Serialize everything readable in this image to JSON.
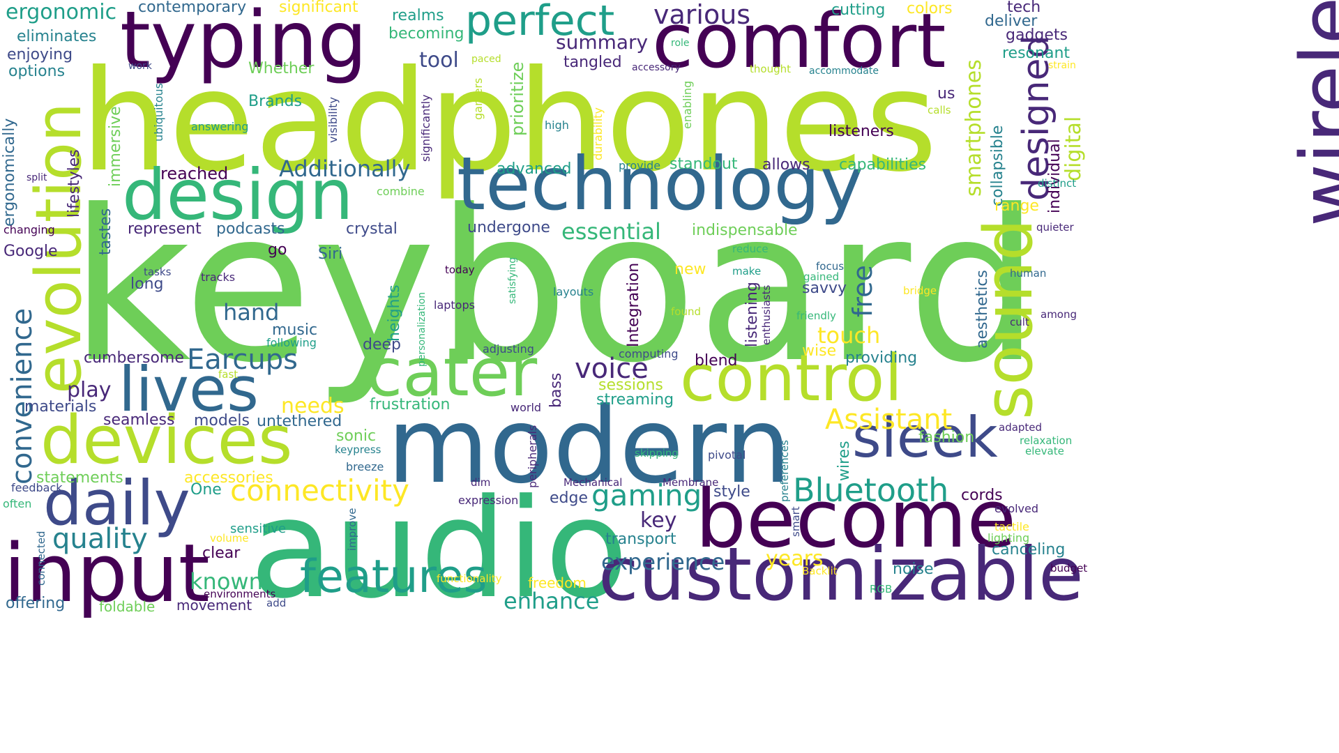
{
  "palette": {
    "purple": "#440154",
    "indigo": "#482878",
    "blue": "#3e4a89",
    "steel": "#31688e",
    "teal": "#26828e",
    "cyan": "#1f9e89",
    "green": "#35b779",
    "lime": "#6ece58",
    "yellowgreen": "#b5de2b",
    "yellow": "#fde725"
  },
  "words": [
    {
      "text": "keyboard",
      "color": "lime"
    },
    {
      "text": "headphones",
      "color": "yellowgreen"
    },
    {
      "text": "audio",
      "color": "green"
    },
    {
      "text": "modern",
      "color": "steel"
    },
    {
      "text": "wireless",
      "color": "indigo"
    },
    {
      "text": "typing",
      "color": "purple"
    },
    {
      "text": "comfort",
      "color": "purple"
    },
    {
      "text": "technology",
      "color": "steel"
    },
    {
      "text": "design",
      "color": "green"
    },
    {
      "text": "evolution",
      "color": "yellowgreen"
    },
    {
      "text": "control",
      "color": "yellowgreen"
    },
    {
      "text": "become",
      "color": "purple"
    },
    {
      "text": "customizable",
      "color": "indigo"
    },
    {
      "text": "input",
      "color": "purple"
    },
    {
      "text": "devices",
      "color": "yellowgreen"
    },
    {
      "text": "cater",
      "color": "lime"
    },
    {
      "text": "sound",
      "color": "yellowgreen"
    },
    {
      "text": "lives",
      "color": "steel"
    },
    {
      "text": "daily",
      "color": "blue"
    },
    {
      "text": "sleek",
      "color": "blue"
    },
    {
      "text": "features",
      "color": "cyan"
    },
    {
      "text": "perfect",
      "color": "cyan"
    },
    {
      "text": "designed",
      "color": "indigo"
    },
    {
      "text": "Bluetooth",
      "color": "cyan"
    },
    {
      "text": "connectivity",
      "color": "yellow"
    },
    {
      "text": "gaming",
      "color": "cyan"
    },
    {
      "text": "quality",
      "color": "teal"
    },
    {
      "text": "convenience",
      "color": "steel"
    },
    {
      "text": "Earcups",
      "color": "steel"
    },
    {
      "text": "voice",
      "color": "indigo"
    },
    {
      "text": "Assistant",
      "color": "yellow"
    },
    {
      "text": "various",
      "color": "indigo"
    },
    {
      "text": "free",
      "color": "steel"
    },
    {
      "text": "Additionally",
      "color": "steel"
    },
    {
      "text": "smartphones",
      "color": "yellowgreen"
    },
    {
      "text": "essential",
      "color": "green"
    },
    {
      "text": "digital",
      "color": "yellowgreen"
    },
    {
      "text": "experience",
      "color": "steel"
    },
    {
      "text": "enhance",
      "color": "cyan"
    },
    {
      "text": "known",
      "color": "green"
    },
    {
      "text": "touch",
      "color": "yellow"
    },
    {
      "text": "hand",
      "color": "steel"
    },
    {
      "text": "key",
      "color": "indigo"
    },
    {
      "text": "play",
      "color": "indigo"
    },
    {
      "text": "needs",
      "color": "yellow"
    },
    {
      "text": "years",
      "color": "yellow"
    },
    {
      "text": "summary",
      "color": "indigo"
    },
    {
      "text": "tool",
      "color": "blue"
    },
    {
      "text": "ergonomic",
      "color": "cyan"
    },
    {
      "text": "contemporary",
      "color": "steel"
    },
    {
      "text": "significant",
      "color": "yellow"
    },
    {
      "text": "realms",
      "color": "cyan"
    },
    {
      "text": "becoming",
      "color": "green"
    },
    {
      "text": "cutting",
      "color": "cyan"
    },
    {
      "text": "colors",
      "color": "yellow"
    },
    {
      "text": "tech",
      "color": "indigo"
    },
    {
      "text": "deliver",
      "color": "steel"
    },
    {
      "text": "gadgets",
      "color": "indigo"
    },
    {
      "text": "resonant",
      "color": "cyan"
    },
    {
      "text": "eliminates",
      "color": "teal"
    },
    {
      "text": "enjoying",
      "color": "blue"
    },
    {
      "text": "options",
      "color": "teal"
    },
    {
      "text": "Whether",
      "color": "lime"
    },
    {
      "text": "Brands",
      "color": "cyan"
    },
    {
      "text": "tangled",
      "color": "indigo"
    },
    {
      "text": "accessory",
      "color": "indigo"
    },
    {
      "text": "thought",
      "color": "yellowgreen"
    },
    {
      "text": "accommodate",
      "color": "teal"
    },
    {
      "text": "strain",
      "color": "yellow"
    },
    {
      "text": "paced",
      "color": "yellowgreen"
    },
    {
      "text": "role",
      "color": "green"
    },
    {
      "text": "work",
      "color": "blue"
    },
    {
      "text": "prioritize",
      "color": "lime"
    },
    {
      "text": "individual",
      "color": "purple"
    },
    {
      "text": "collapsible",
      "color": "teal"
    },
    {
      "text": "us",
      "color": "indigo"
    },
    {
      "text": "calls",
      "color": "yellowgreen"
    },
    {
      "text": "high",
      "color": "teal"
    },
    {
      "text": "listeners",
      "color": "purple"
    },
    {
      "text": "lifestyles",
      "color": "indigo"
    },
    {
      "text": "immersive",
      "color": "lime"
    },
    {
      "text": "ubiquitous",
      "color": "teal"
    },
    {
      "text": "answering",
      "color": "cyan"
    },
    {
      "text": "visibility",
      "color": "blue"
    },
    {
      "text": "significantly",
      "color": "indigo"
    },
    {
      "text": "gamers",
      "color": "yellowgreen"
    },
    {
      "text": "durability",
      "color": "yellow"
    },
    {
      "text": "enabling",
      "color": "lime"
    },
    {
      "text": "ergonomically",
      "color": "steel"
    },
    {
      "text": "split",
      "color": "indigo"
    },
    {
      "text": "combine",
      "color": "lime"
    },
    {
      "text": "reached",
      "color": "purple"
    },
    {
      "text": "provide",
      "color": "teal"
    },
    {
      "text": "standout",
      "color": "green"
    },
    {
      "text": "allows",
      "color": "indigo"
    },
    {
      "text": "capabilities",
      "color": "green"
    },
    {
      "text": "distinct",
      "color": "cyan"
    },
    {
      "text": "advanced",
      "color": "cyan"
    },
    {
      "text": "range",
      "color": "yellow"
    },
    {
      "text": "quieter",
      "color": "indigo"
    },
    {
      "text": "changing",
      "color": "purple"
    },
    {
      "text": "tastes",
      "color": "steel"
    },
    {
      "text": "represent",
      "color": "indigo"
    },
    {
      "text": "podcasts",
      "color": "steel"
    },
    {
      "text": "crystal",
      "color": "blue"
    },
    {
      "text": "undergone",
      "color": "blue"
    },
    {
      "text": "indispensable",
      "color": "lime"
    },
    {
      "text": "Google",
      "color": "indigo"
    },
    {
      "text": "go",
      "color": "purple"
    },
    {
      "text": "Siri",
      "color": "steel"
    },
    {
      "text": "Integration",
      "color": "purple"
    },
    {
      "text": "reduce",
      "color": "green"
    },
    {
      "text": "make",
      "color": "cyan"
    },
    {
      "text": "tasks",
      "color": "blue"
    },
    {
      "text": "tracks",
      "color": "indigo"
    },
    {
      "text": "long",
      "color": "blue"
    },
    {
      "text": "today",
      "color": "purple"
    },
    {
      "text": "personalization",
      "color": "green"
    },
    {
      "text": "satisfying",
      "color": "green"
    },
    {
      "text": "new",
      "color": "yellow"
    },
    {
      "text": "focus",
      "color": "steel"
    },
    {
      "text": "gained",
      "color": "green"
    },
    {
      "text": "savvy",
      "color": "blue"
    },
    {
      "text": "bridge",
      "color": "yellow"
    },
    {
      "text": "human",
      "color": "steel"
    },
    {
      "text": "listening",
      "color": "indigo"
    },
    {
      "text": "enthusiasts",
      "color": "indigo"
    },
    {
      "text": "aesthetics",
      "color": "steel"
    },
    {
      "text": "among",
      "color": "indigo"
    },
    {
      "text": "cult",
      "color": "indigo"
    },
    {
      "text": "heights",
      "color": "cyan"
    },
    {
      "text": "layouts",
      "color": "teal"
    },
    {
      "text": "laptops",
      "color": "indigo"
    },
    {
      "text": "found",
      "color": "yellowgreen"
    },
    {
      "text": "friendly",
      "color": "green"
    },
    {
      "text": "music",
      "color": "steel"
    },
    {
      "text": "following",
      "color": "cyan"
    },
    {
      "text": "deep",
      "color": "blue"
    },
    {
      "text": "adjusting",
      "color": "blue"
    },
    {
      "text": "computing",
      "color": "blue"
    },
    {
      "text": "blend",
      "color": "purple"
    },
    {
      "text": "wise",
      "color": "yellow"
    },
    {
      "text": "providing",
      "color": "teal"
    },
    {
      "text": "cumbersome",
      "color": "indigo"
    },
    {
      "text": "fast",
      "color": "yellowgreen"
    },
    {
      "text": "sessions",
      "color": "yellowgreen"
    },
    {
      "text": "streaming",
      "color": "cyan"
    },
    {
      "text": "bass",
      "color": "indigo"
    },
    {
      "text": "materials",
      "color": "blue"
    },
    {
      "text": "frustration",
      "color": "green"
    },
    {
      "text": "world",
      "color": "indigo"
    },
    {
      "text": "seamless",
      "color": "indigo"
    },
    {
      "text": "models",
      "color": "blue"
    },
    {
      "text": "untethered",
      "color": "steel"
    },
    {
      "text": "peripherals",
      "color": "indigo"
    },
    {
      "text": "fashion",
      "color": "lime"
    },
    {
      "text": "adapted",
      "color": "indigo"
    },
    {
      "text": "relaxation",
      "color": "green"
    },
    {
      "text": "elevate",
      "color": "green"
    },
    {
      "text": "sonic",
      "color": "lime"
    },
    {
      "text": "keypress",
      "color": "teal"
    },
    {
      "text": "skipping",
      "color": "green"
    },
    {
      "text": "pivotal",
      "color": "blue"
    },
    {
      "text": "wires",
      "color": "cyan"
    },
    {
      "text": "preferences",
      "color": "teal"
    },
    {
      "text": "breeze",
      "color": "steel"
    },
    {
      "text": "statements",
      "color": "lime"
    },
    {
      "text": "accessories",
      "color": "yellow"
    },
    {
      "text": "dim",
      "color": "indigo"
    },
    {
      "text": "Mechanical",
      "color": "indigo"
    },
    {
      "text": "Membrane",
      "color": "indigo"
    },
    {
      "text": "feedback",
      "color": "blue"
    },
    {
      "text": "One",
      "color": "cyan"
    },
    {
      "text": "style",
      "color": "blue"
    },
    {
      "text": "cords",
      "color": "purple"
    },
    {
      "text": "often",
      "color": "green"
    },
    {
      "text": "expression",
      "color": "indigo"
    },
    {
      "text": "edge",
      "color": "blue"
    },
    {
      "text": "evolved",
      "color": "indigo"
    },
    {
      "text": "tactile",
      "color": "yellow"
    },
    {
      "text": "lighting",
      "color": "lime"
    },
    {
      "text": "improve",
      "color": "steel"
    },
    {
      "text": "sensitive",
      "color": "cyan"
    },
    {
      "text": "connected",
      "color": "steel"
    },
    {
      "text": "volume",
      "color": "yellow"
    },
    {
      "text": "transport",
      "color": "teal"
    },
    {
      "text": "smart",
      "color": "blue"
    },
    {
      "text": "canceling",
      "color": "teal"
    },
    {
      "text": "clear",
      "color": "purple"
    },
    {
      "text": "Backlit",
      "color": "yellow"
    },
    {
      "text": "noise",
      "color": "teal"
    },
    {
      "text": "budget",
      "color": "purple"
    },
    {
      "text": "functionality",
      "color": "yellow"
    },
    {
      "text": "freedom",
      "color": "yellow"
    },
    {
      "text": "offering",
      "color": "steel"
    },
    {
      "text": "environments",
      "color": "purple"
    },
    {
      "text": "add",
      "color": "blue"
    },
    {
      "text": "foldable",
      "color": "lime"
    },
    {
      "text": "movement",
      "color": "indigo"
    },
    {
      "text": "RGB",
      "color": "green"
    }
  ]
}
